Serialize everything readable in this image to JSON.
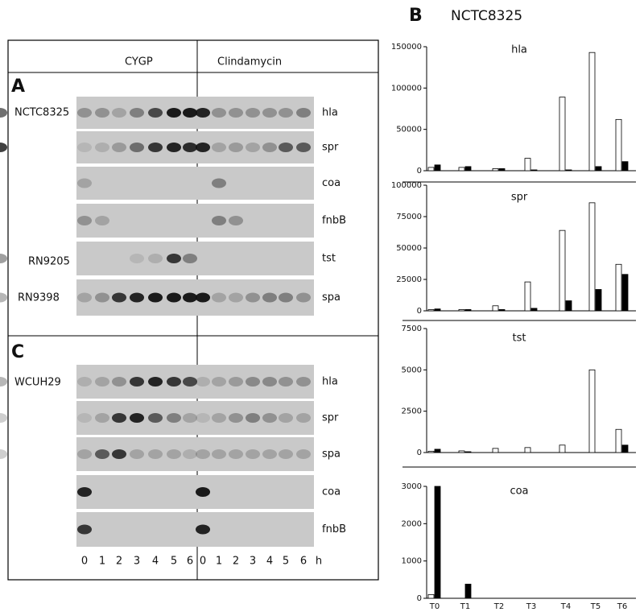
{
  "panel_a": {
    "label": "A",
    "columns": [
      "CYGP",
      "Clindamycin"
    ],
    "strains": [
      "NCTC8325",
      "RN9205",
      "RN9398"
    ],
    "genes": [
      "hla",
      "spr",
      "coa",
      "fnbB",
      "tst",
      "spa"
    ]
  },
  "panel_c": {
    "label": "C",
    "strains": [
      "WCUH29"
    ],
    "genes": [
      "hla",
      "spr",
      "spa",
      "coa",
      "fnbB"
    ],
    "lanes": [
      "0",
      "1",
      "2",
      "3",
      "4",
      "5",
      "6",
      "0",
      "1",
      "2",
      "3",
      "4",
      "5",
      "6",
      "h"
    ]
  },
  "panel_b": {
    "label": "B",
    "title": "NCTC8325"
  },
  "chart_data": [
    {
      "type": "bar",
      "title": "hla",
      "ylim": [
        0,
        150000
      ],
      "yticks": [
        0,
        50000,
        100000,
        150000
      ],
      "series": [
        {
          "color": "#ffffff",
          "values": [
            4000,
            4000,
            2500,
            15000,
            89000,
            143000,
            62000
          ]
        },
        {
          "color": "#000000",
          "values": [
            7000,
            5000,
            2500,
            1000,
            1000,
            5000,
            11000
          ]
        }
      ]
    },
    {
      "type": "bar",
      "title": "spr",
      "ylim": [
        0,
        100000
      ],
      "yticks": [
        0,
        25000,
        50000,
        75000,
        100000
      ],
      "series": [
        {
          "color": "#ffffff",
          "values": [
            1000,
            1000,
            4000,
            23000,
            64000,
            86000,
            37000
          ]
        },
        {
          "color": "#000000",
          "values": [
            1500,
            1000,
            1000,
            2000,
            8000,
            17000,
            29000
          ]
        }
      ]
    },
    {
      "type": "bar",
      "title": "tst",
      "ylim": [
        0,
        7500
      ],
      "yticks": [
        0,
        2500,
        5000,
        7500
      ],
      "series": [
        {
          "color": "#ffffff",
          "values": [
            80,
            100,
            250,
            300,
            450,
            5000,
            1400
          ]
        },
        {
          "color": "#000000",
          "values": [
            200,
            50,
            0,
            0,
            0,
            0,
            450
          ]
        }
      ]
    },
    {
      "type": "bar",
      "title": "coa",
      "ylim": [
        0,
        3000
      ],
      "yticks": [
        0,
        1000,
        2000,
        3000
      ],
      "categories": [
        "T0",
        "T1",
        "T2",
        "T3",
        "T4",
        "T5",
        "T6"
      ],
      "series": [
        {
          "color": "#ffffff",
          "values": [
            100,
            0,
            0,
            0,
            0,
            0,
            0
          ]
        },
        {
          "color": "#000000",
          "values": [
            3000,
            380,
            0,
            0,
            0,
            0,
            0
          ]
        }
      ]
    }
  ]
}
